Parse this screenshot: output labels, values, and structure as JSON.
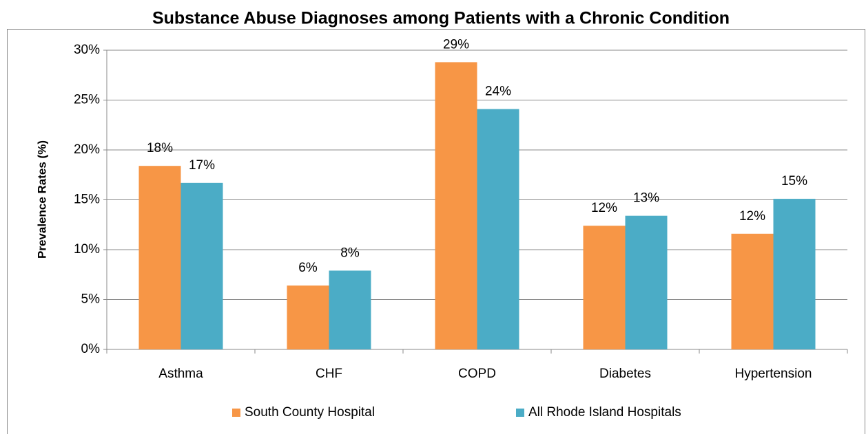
{
  "chart_data": {
    "type": "bar",
    "title": "Substance Abuse Diagnoses among Patients with a Chronic Condition",
    "y_label": "Prevalence Rates (%)",
    "categories": [
      "Asthma",
      "CHF",
      "COPD",
      "Diabetes",
      "Hypertension"
    ],
    "series": [
      {
        "name": "South County Hospital",
        "color": "#f79646",
        "values": [
          18.4,
          6.4,
          28.8,
          12.4,
          11.6
        ],
        "value_labels": [
          "18%",
          "6%",
          "29%",
          "12%",
          "12%"
        ]
      },
      {
        "name": "All Rhode Island Hospitals",
        "color": "#4bacc6",
        "values": [
          16.7,
          7.9,
          24.1,
          13.4,
          15.1
        ],
        "value_labels": [
          "17%",
          "8%",
          "24%",
          "13%",
          "15%"
        ]
      }
    ],
    "ylim": [
      0,
      30
    ],
    "yticks": [
      {
        "value": 0,
        "label": "0%"
      },
      {
        "value": 5,
        "label": "5%"
      },
      {
        "value": 10,
        "label": "10%"
      },
      {
        "value": 15,
        "label": "15%"
      },
      {
        "value": 20,
        "label": "20%"
      },
      {
        "value": 25,
        "label": "25%"
      },
      {
        "value": 30,
        "label": "30%"
      }
    ],
    "grid": true,
    "legend": "bottom"
  }
}
